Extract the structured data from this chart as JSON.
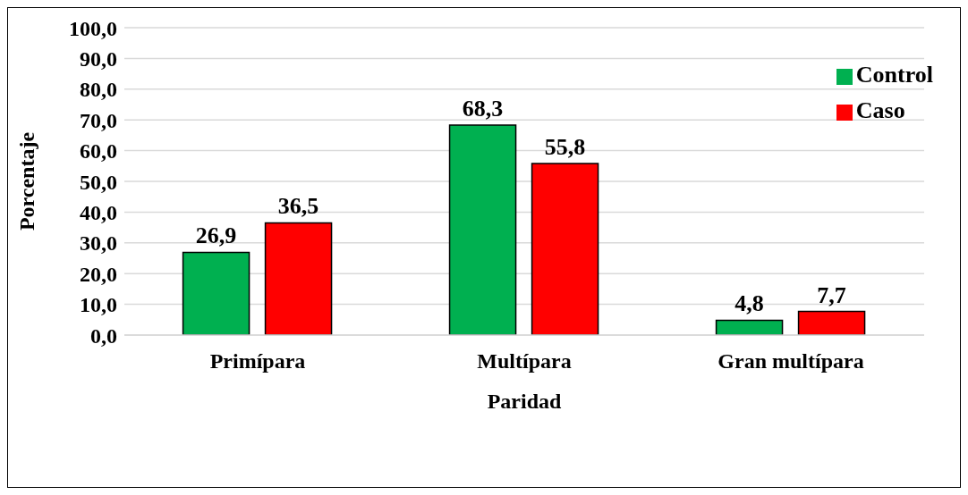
{
  "chart_data": {
    "type": "bar",
    "ylabel": "Porcentaje",
    "xlabel": "Paridad",
    "categories": [
      "Primípara",
      "Multípara",
      "Gran multípara"
    ],
    "series": [
      {
        "name": "Control",
        "color": "#00b050",
        "values": [
          26.9,
          68.3,
          4.8
        ],
        "value_labels": [
          "26,9",
          "68,3",
          "4,8"
        ]
      },
      {
        "name": "Caso",
        "color": "#ff0000",
        "values": [
          36.5,
          55.8,
          7.7
        ],
        "value_labels": [
          "36,5",
          "55,8",
          "7,7"
        ]
      }
    ],
    "ylim": [
      0,
      100
    ],
    "yticks": [
      {
        "value": 0,
        "label": "0,0"
      },
      {
        "value": 10,
        "label": "10,0"
      },
      {
        "value": 20,
        "label": "20,0"
      },
      {
        "value": 30,
        "label": "30,0"
      },
      {
        "value": 40,
        "label": "40,0"
      },
      {
        "value": 50,
        "label": "50,0"
      },
      {
        "value": 60,
        "label": "60,0"
      },
      {
        "value": 70,
        "label": "70,0"
      },
      {
        "value": 80,
        "label": "80,0"
      },
      {
        "value": 90,
        "label": "90,0"
      },
      {
        "value": 100,
        "label": "100,0"
      }
    ],
    "grid": "y",
    "legend": "top right"
  }
}
